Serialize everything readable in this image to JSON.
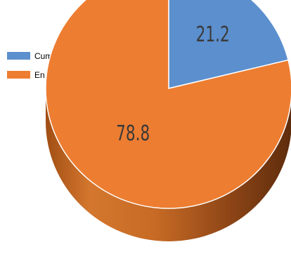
{
  "chart_data": {
    "type": "pie",
    "title": "",
    "legend_position": "left",
    "categories": [
      "Cum",
      "En"
    ],
    "values": [
      21.2,
      78.8
    ],
    "colors": [
      "#5b8fce",
      "#ed7d31"
    ],
    "data_labels": [
      "21.2",
      "78.8"
    ]
  }
}
